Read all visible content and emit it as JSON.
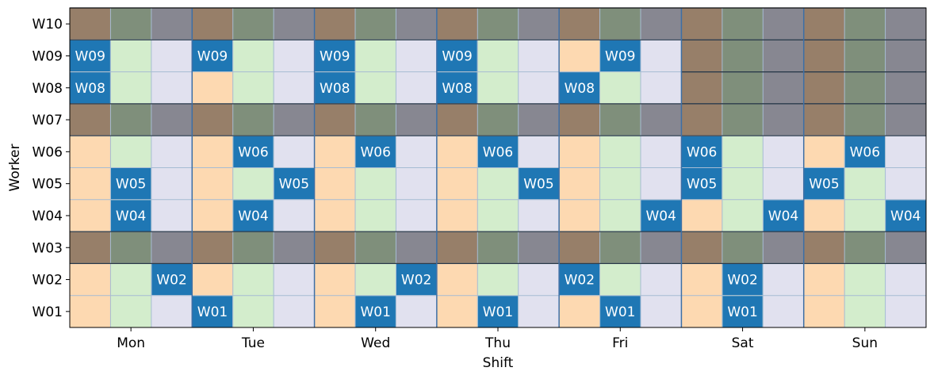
{
  "chart_data": {
    "type": "heatmap",
    "xlabel": "Shift",
    "ylabel": "Worker",
    "days": [
      "Mon",
      "Tue",
      "Wed",
      "Thu",
      "Fri",
      "Sat",
      "Sun"
    ],
    "shifts_per_day": 3,
    "workers": [
      "W01",
      "W02",
      "W03",
      "W04",
      "W05",
      "W06",
      "W07",
      "W08",
      "W09",
      "W10"
    ],
    "unavailable_workers": [
      "W03",
      "W07",
      "W10"
    ],
    "unavailable_cells": {
      "W08": [
        [
          5,
          0
        ],
        [
          5,
          1
        ],
        [
          5,
          2
        ],
        [
          6,
          0
        ],
        [
          6,
          1
        ],
        [
          6,
          2
        ]
      ],
      "W09": [
        [
          5,
          0
        ],
        [
          5,
          1
        ],
        [
          5,
          2
        ],
        [
          6,
          0
        ],
        [
          6,
          1
        ],
        [
          6,
          2
        ]
      ]
    },
    "assignments": [
      {
        "worker": "W01",
        "day": 1,
        "shift": 0
      },
      {
        "worker": "W01",
        "day": 2,
        "shift": 1
      },
      {
        "worker": "W01",
        "day": 3,
        "shift": 1
      },
      {
        "worker": "W01",
        "day": 4,
        "shift": 1
      },
      {
        "worker": "W01",
        "day": 5,
        "shift": 1
      },
      {
        "worker": "W02",
        "day": 0,
        "shift": 2
      },
      {
        "worker": "W02",
        "day": 2,
        "shift": 2
      },
      {
        "worker": "W02",
        "day": 4,
        "shift": 0
      },
      {
        "worker": "W02",
        "day": 5,
        "shift": 1
      },
      {
        "worker": "W04",
        "day": 0,
        "shift": 1
      },
      {
        "worker": "W04",
        "day": 1,
        "shift": 1
      },
      {
        "worker": "W04",
        "day": 4,
        "shift": 2
      },
      {
        "worker": "W04",
        "day": 5,
        "shift": 2
      },
      {
        "worker": "W04",
        "day": 6,
        "shift": 2
      },
      {
        "worker": "W05",
        "day": 0,
        "shift": 1
      },
      {
        "worker": "W05",
        "day": 1,
        "shift": 2
      },
      {
        "worker": "W05",
        "day": 3,
        "shift": 2
      },
      {
        "worker": "W05",
        "day": 5,
        "shift": 0
      },
      {
        "worker": "W05",
        "day": 6,
        "shift": 0
      },
      {
        "worker": "W06",
        "day": 1,
        "shift": 1
      },
      {
        "worker": "W06",
        "day": 2,
        "shift": 1
      },
      {
        "worker": "W06",
        "day": 3,
        "shift": 1
      },
      {
        "worker": "W06",
        "day": 5,
        "shift": 0
      },
      {
        "worker": "W06",
        "day": 6,
        "shift": 1
      },
      {
        "worker": "W08",
        "day": 0,
        "shift": 0
      },
      {
        "worker": "W08",
        "day": 2,
        "shift": 0
      },
      {
        "worker": "W08",
        "day": 3,
        "shift": 0
      },
      {
        "worker": "W08",
        "day": 4,
        "shift": 0
      },
      {
        "worker": "W09",
        "day": 0,
        "shift": 0
      },
      {
        "worker": "W09",
        "day": 1,
        "shift": 0
      },
      {
        "worker": "W09",
        "day": 2,
        "shift": 0
      },
      {
        "worker": "W09",
        "day": 3,
        "shift": 0
      },
      {
        "worker": "W09",
        "day": 4,
        "shift": 1
      }
    ],
    "colors": {
      "shift_available": [
        "#fdd9b1",
        "#d3edcc",
        "#e1e1ef"
      ],
      "shift_unavailable": [
        "#977f69",
        "#7f8f7b",
        "#878791"
      ],
      "assigned": "#1f77b4",
      "day_divider": "#3d6fa6",
      "grid_line": "#a6bcd3",
      "row_divider": "#2a3a4a"
    }
  }
}
